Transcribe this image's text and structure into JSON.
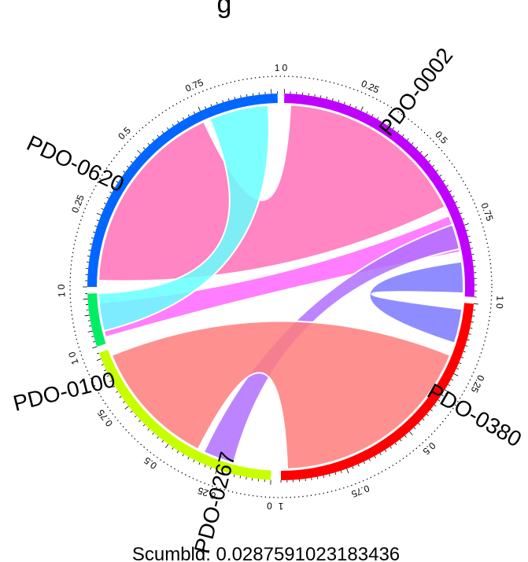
{
  "title": "g",
  "score_text": "Scumbld:  0.0287591023183436",
  "ticks": [
    "0",
    "0.25",
    "0.5",
    "0.75",
    "1"
  ],
  "chart_data": {
    "type": "chord",
    "sectors": [
      {
        "name": "PDO-0002",
        "short": "2",
        "color": "#C000FF"
      },
      {
        "name": "PDO-0380",
        "short": "80",
        "color": "#FF0000"
      },
      {
        "name": "PDO-0267",
        "short": "267",
        "color": "#C8FF00"
      },
      {
        "name": "PDO-0100",
        "short": "00",
        "color": "#00EE66"
      },
      {
        "name": "PDO-0620",
        "short": "20",
        "color": "#0066FF"
      }
    ],
    "links": [
      {
        "from": "PDO-0620",
        "to": "PDO-0002",
        "color": "#FF70B8"
      },
      {
        "from": "PDO-0100",
        "to": "PDO-0002",
        "color": "#FF66FF"
      },
      {
        "from": "PDO-0620",
        "to": "PDO-0100",
        "color": "#66FFFF"
      },
      {
        "from": "PDO-0002",
        "to": "PDO-0380",
        "color": "#7A78FF"
      },
      {
        "from": "PDO-0002",
        "to": "PDO-0267",
        "color": "#B070FF"
      },
      {
        "from": "PDO-0267",
        "to": "PDO-0380",
        "color": "#FF7C7C"
      }
    ]
  }
}
